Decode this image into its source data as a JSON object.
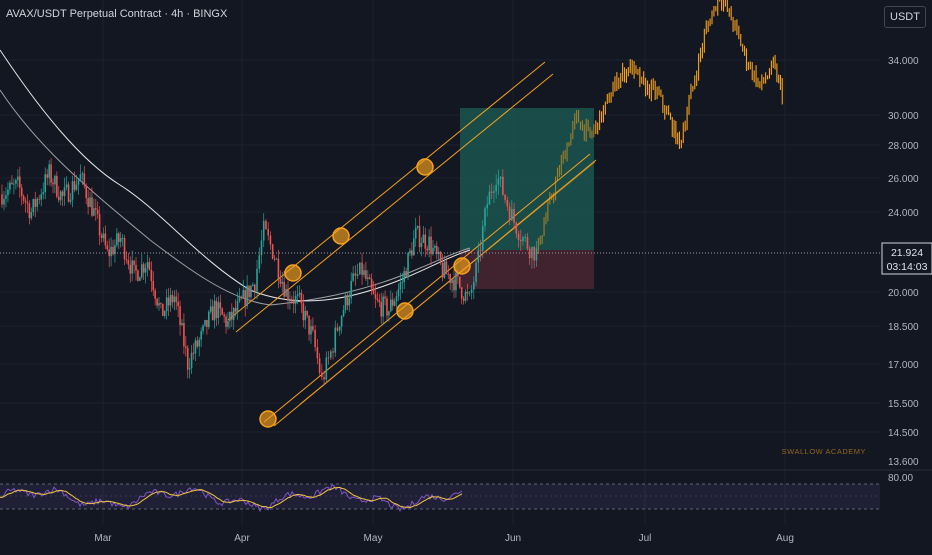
{
  "header": {
    "title": "AVAX/USDT Perpetual Contract · 4h · BINGX",
    "currency": "USDT"
  },
  "price_badge": {
    "price": "21.924",
    "countdown": "03:14:03"
  },
  "watermark": "SWALLOW ACADEMY",
  "rsi_panel": {
    "level_label": "80.00"
  },
  "colors": {
    "background": "#131722",
    "bull": "#26a69a",
    "bear": "#ef5350",
    "channel": "#f7a21b",
    "projection": "#f7a21b",
    "rsi": "#7e57c2",
    "rsi_ma": "#f5c542",
    "target_zone": "#1c5e55",
    "stop_zone": "#4a2431"
  },
  "chart_data": {
    "type": "candlestick",
    "title": "AVAX/USDT Perpetual Contract · 4h · BINGX",
    "price_axis": {
      "scale": "log",
      "ticks": [
        "34.000",
        "30.000",
        "28.000",
        "26.000",
        "24.000",
        "20.000",
        "18.500",
        "17.000",
        "15.500",
        "14.500",
        "13.600"
      ],
      "ylim": [
        13.3,
        40.5
      ]
    },
    "time_axis": {
      "ticks": [
        "Mar",
        "Apr",
        "May",
        "Jun",
        "Jul",
        "Aug"
      ]
    },
    "candles_close_path": [
      [
        "2024-02-01",
        25.0
      ],
      [
        "2024-02-05",
        25.5
      ],
      [
        "2024-02-08",
        24.0
      ],
      [
        "2024-02-12",
        26.2
      ],
      [
        "2024-02-15",
        24.8
      ],
      [
        "2024-02-19",
        26.0
      ],
      [
        "2024-02-22",
        24.0
      ],
      [
        "2024-02-25",
        21.8
      ],
      [
        "2024-02-28",
        22.6
      ],
      [
        "2024-03-02",
        20.8
      ],
      [
        "2024-03-05",
        21.5
      ],
      [
        "2024-03-08",
        19.0
      ],
      [
        "2024-03-11",
        19.8
      ],
      [
        "2024-03-14",
        17.0
      ],
      [
        "2024-03-17",
        18.0
      ],
      [
        "2024-03-20",
        19.3
      ],
      [
        "2024-03-23",
        18.6
      ],
      [
        "2024-03-26",
        19.5
      ],
      [
        "2024-03-29",
        20.5
      ],
      [
        "2024-03-31",
        23.0
      ],
      [
        "2024-04-02",
        22.0
      ],
      [
        "2024-04-05",
        20.0
      ],
      [
        "2024-04-08",
        19.5
      ],
      [
        "2024-04-11",
        18.0
      ],
      [
        "2024-04-13",
        16.3
      ],
      [
        "2024-04-15",
        17.4
      ],
      [
        "2024-04-17",
        18.8
      ],
      [
        "2024-04-20",
        20.5
      ],
      [
        "2024-04-22",
        21.0
      ],
      [
        "2024-04-25",
        19.5
      ],
      [
        "2024-04-28",
        19.2
      ],
      [
        "2024-05-01",
        20.5
      ],
      [
        "2024-05-04",
        22.8
      ],
      [
        "2024-05-07",
        22.4
      ],
      [
        "2024-05-10",
        21.0
      ],
      [
        "2024-05-13",
        20.5
      ],
      [
        "2024-05-16",
        19.6
      ],
      [
        "2024-05-18",
        21.5
      ],
      [
        "2024-05-20",
        24.5
      ],
      [
        "2024-05-22",
        26.2
      ],
      [
        "2024-05-24",
        24.8
      ],
      [
        "2024-05-26",
        23.5
      ],
      [
        "2024-05-28",
        22.6
      ],
      [
        "2024-05-30",
        22.0
      ],
      [
        "2024-05-31",
        21.9
      ]
    ],
    "projection_path": [
      [
        "2024-05-31",
        21.9
      ],
      [
        "2024-06-03",
        24.5
      ],
      [
        "2024-06-06",
        27.2
      ],
      [
        "2024-06-09",
        29.8
      ],
      [
        "2024-06-12",
        28.5
      ],
      [
        "2024-06-15",
        30.2
      ],
      [
        "2024-06-18",
        32.5
      ],
      [
        "2024-06-21",
        33.5
      ],
      [
        "2024-06-24",
        32.0
      ],
      [
        "2024-06-27",
        31.5
      ],
      [
        "2024-06-30",
        29.5
      ],
      [
        "2024-07-02",
        28.0
      ],
      [
        "2024-07-05",
        32.0
      ],
      [
        "2024-07-08",
        36.5
      ],
      [
        "2024-07-11",
        39.5
      ],
      [
        "2024-07-14",
        37.0
      ],
      [
        "2024-07-17",
        34.0
      ],
      [
        "2024-07-20",
        32.0
      ],
      [
        "2024-07-23",
        33.5
      ],
      [
        "2024-07-25",
        31.5
      ]
    ],
    "position_tool": {
      "entry": 21.924,
      "target": 30.5,
      "stop": 20.1
    },
    "current_price": 21.924
  }
}
